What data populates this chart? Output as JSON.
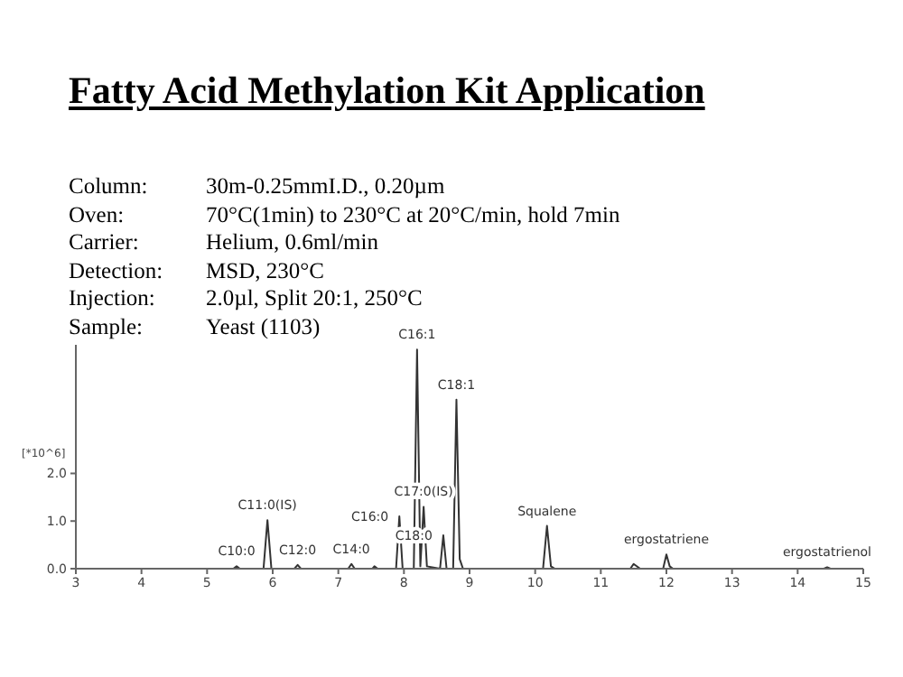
{
  "chart_data": {
    "type": "line",
    "title": "Fatty Acid Methylation Kit Application",
    "ylabel": "[*10^6]",
    "annotations": [
      "Column: 30m-0.25mmI.D., 0.20µm",
      "Oven: 70°C(1min) to 230°C at 20°C/min, hold 7min",
      "Carrier: Helium, 0.6ml/min",
      "Detection: MSD, 230°C",
      "Injection: 2.0µl, Split 20:1, 250°C",
      "Sample: Yeast (1103)",
      {
        "text": "C10:0",
        "x": 5.45,
        "y": 0.05
      },
      {
        "text": "C11:0(IS)",
        "x": 5.92,
        "y": 1.02
      },
      {
        "text": "C12:0",
        "x": 6.38,
        "y": 0.08
      },
      {
        "text": "C14:0",
        "x": 7.2,
        "y": 0.1
      },
      {
        "text": "C16:0",
        "x": 7.93,
        "y": 1.1
      },
      {
        "text": "C16:1",
        "x": 8.2,
        "y": 4.6
      },
      {
        "text": "C17:0(IS)",
        "x": 8.3,
        "y": 1.3
      },
      {
        "text": "C18:0",
        "x": 8.6,
        "y": 0.7
      },
      {
        "text": "C18:1",
        "x": 8.8,
        "y": 3.55
      },
      {
        "text": "Squalene",
        "x": 10.18,
        "y": 0.9
      },
      {
        "text": "ergostatriene",
        "x": 12.0,
        "y": 0.3
      },
      {
        "text": "ergostatrienol",
        "x": 14.45,
        "y": 0.03
      }
    ],
    "x": [
      3.0,
      5.4,
      5.45,
      5.5,
      5.86,
      5.92,
      5.98,
      6.33,
      6.38,
      6.43,
      7.15,
      7.2,
      7.25,
      7.52,
      7.55,
      7.6,
      7.88,
      7.93,
      7.98,
      8.15,
      8.2,
      8.25,
      8.3,
      8.35,
      8.55,
      8.6,
      8.65,
      8.75,
      8.8,
      8.85,
      8.9,
      10.12,
      10.18,
      10.24,
      10.3,
      11.45,
      11.5,
      11.6,
      11.95,
      12.0,
      12.05,
      12.1,
      14.4,
      14.45,
      14.5,
      15.0
    ],
    "series": [
      {
        "color": "#333333",
        "values": [
          0,
          0,
          0.05,
          0,
          0,
          1.02,
          0,
          0,
          0.08,
          0,
          0,
          0.1,
          0,
          0,
          0.05,
          0,
          0,
          1.1,
          0,
          0,
          4.6,
          0.05,
          1.3,
          0.05,
          0,
          0.7,
          0,
          0,
          3.55,
          0.2,
          0,
          0,
          0.9,
          0.05,
          0,
          0,
          0.1,
          0,
          0,
          0.3,
          0.05,
          0,
          0,
          0.03,
          0,
          0
        ]
      }
    ],
    "xlim": [
      3,
      15
    ],
    "xticks": [
      3,
      4,
      5,
      6,
      7,
      8,
      9,
      10,
      11,
      12,
      13,
      14,
      15
    ],
    "ylim": [
      0,
      4.7
    ],
    "yticks": [
      {
        "value": 0,
        "label": "0.0"
      },
      {
        "value": 1,
        "label": "1.0"
      },
      {
        "value": 2,
        "label": "2.0"
      }
    ],
    "grid": false,
    "legend": false,
    "marker": "none",
    "line_style": "solid"
  }
}
